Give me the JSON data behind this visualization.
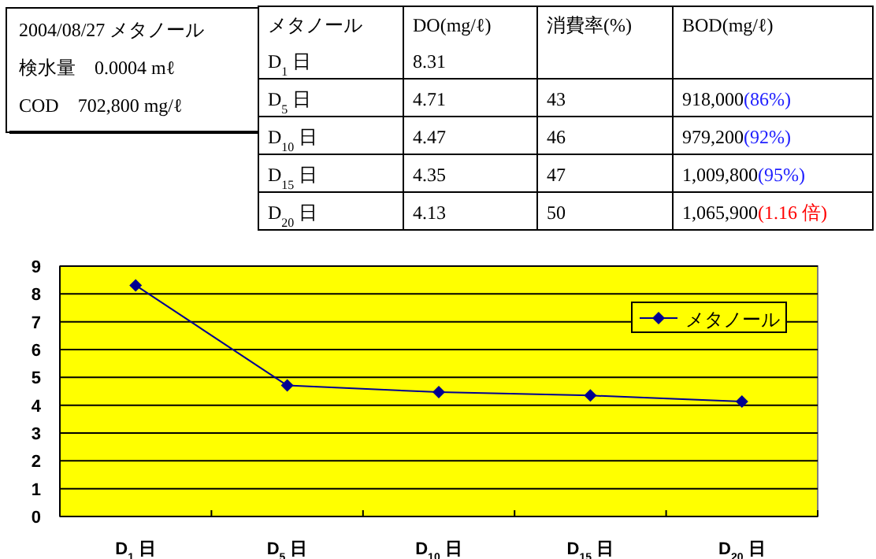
{
  "chart_data": {
    "type": "line",
    "categories": [
      "D$_{1}$ 日",
      "D$_{5}$ 日",
      "D$_{10}$ 日",
      "D$_{15}$ 日",
      "D$_{20}$ 日"
    ],
    "series": [
      {
        "name": "メタノール",
        "color": "#000090",
        "values": [
          8.31,
          4.71,
          4.47,
          4.35,
          4.13
        ]
      }
    ],
    "ylim": [
      0,
      9
    ],
    "yticks": [
      0,
      1,
      2,
      3,
      4,
      5,
      6,
      7,
      8,
      9
    ],
    "grid": "y",
    "legend": "top right",
    "marker": "diamond",
    "line_style": "solid",
    "annotations": [
      "2004/08/27 メタノール",
      "検水量　0.0004 mℓ",
      "COD　702,800 mg/ℓ",
      "メタノール",
      "DO(mg/ℓ)",
      "消費率(%)",
      "BOD(mg/ℓ)",
      "8.31",
      "4.71",
      "43",
      "918,000(86%)",
      "4.47",
      "46",
      "979,200(92%)",
      "4.35",
      "47",
      "1,009,800(95%)",
      "4.13",
      "50",
      "1,065,900(1.16 倍)"
    ]
  }
}
